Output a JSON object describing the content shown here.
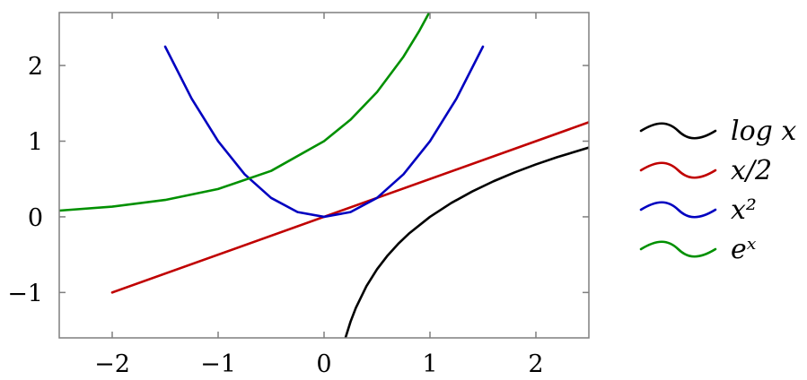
{
  "chart_data": {
    "type": "line",
    "title": "",
    "xlabel": "",
    "ylabel": "",
    "xlim": [
      -2.5,
      2.5
    ],
    "ylim": [
      -1.6,
      2.7
    ],
    "x_ticks": [
      -2,
      -1,
      0,
      1,
      2
    ],
    "x_tick_labels": [
      "−2",
      "−1",
      "0",
      "1",
      "2"
    ],
    "y_ticks": [
      -1,
      0,
      1,
      2
    ],
    "y_tick_labels": [
      "−1",
      "0",
      "1",
      "2"
    ],
    "grid": false,
    "legend_position": "right",
    "series": [
      {
        "name": "log x",
        "color": "#000000",
        "x": [
          0.2,
          0.25,
          0.3,
          0.4,
          0.5,
          0.6,
          0.7,
          0.8,
          1.0,
          1.2,
          1.4,
          1.6,
          1.8,
          2.0,
          2.2,
          2.5
        ],
        "y": [
          -1.609,
          -1.386,
          -1.204,
          -0.916,
          -0.693,
          -0.511,
          -0.357,
          -0.223,
          0.0,
          0.182,
          0.336,
          0.47,
          0.588,
          0.693,
          0.788,
          0.916
        ]
      },
      {
        "name": "x/2",
        "color": "#c00000",
        "x": [
          -2.0,
          2.5
        ],
        "y": [
          -1.0,
          1.25
        ]
      },
      {
        "name": "x²",
        "color": "#0000c0",
        "x": [
          -1.5,
          -1.25,
          -1.0,
          -0.75,
          -0.5,
          -0.25,
          0.0,
          0.25,
          0.5,
          0.75,
          1.0,
          1.25,
          1.5
        ],
        "y": [
          2.25,
          1.5625,
          1.0,
          0.5625,
          0.25,
          0.0625,
          0.0,
          0.0625,
          0.25,
          0.5625,
          1.0,
          1.5625,
          2.25
        ]
      },
      {
        "name": "eˣ",
        "color": "#009000",
        "x": [
          -2.5,
          -2.0,
          -1.5,
          -1.0,
          -0.5,
          0.0,
          0.25,
          0.5,
          0.75,
          0.9,
          1.0
        ],
        "y": [
          0.082,
          0.135,
          0.223,
          0.368,
          0.607,
          1.0,
          1.284,
          1.649,
          2.117,
          2.46,
          2.718
        ]
      }
    ]
  }
}
